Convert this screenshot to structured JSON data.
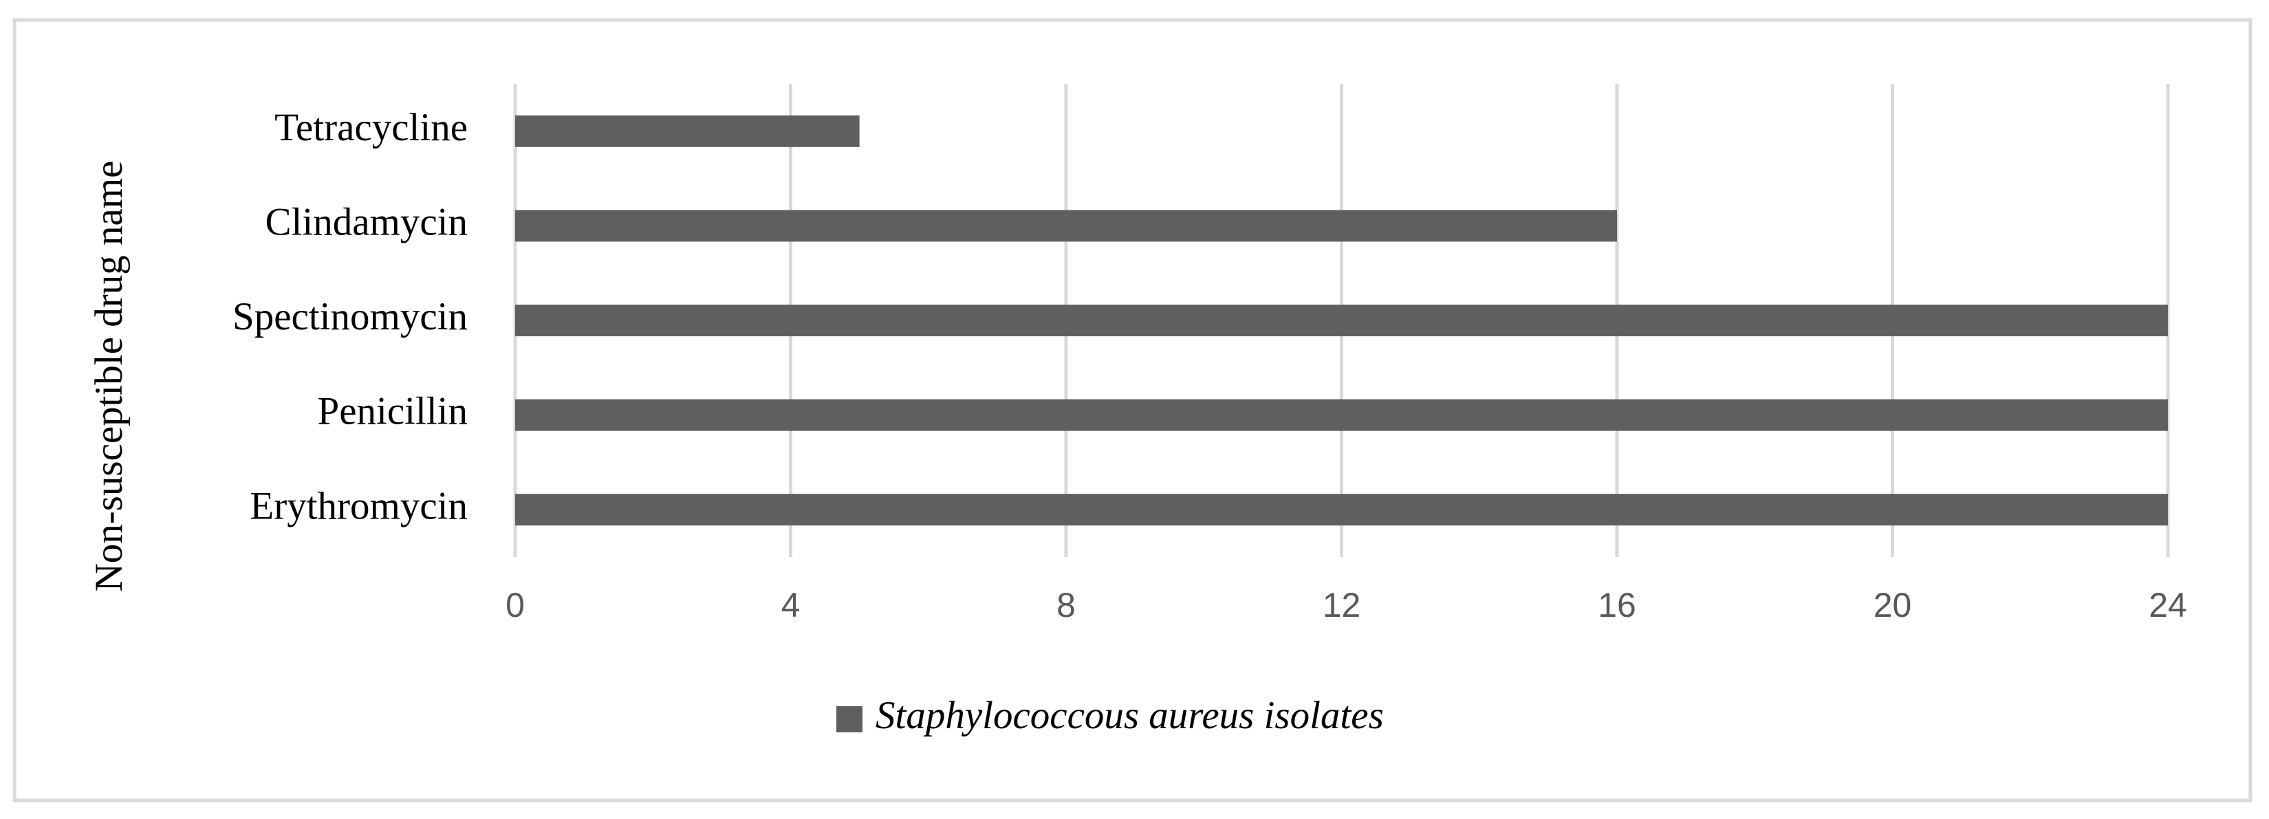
{
  "chart_data": {
    "type": "bar",
    "orientation": "horizontal",
    "y_label": "Non-susceptible drug name",
    "categories": [
      "Erythromycin",
      "Penicillin",
      "Spectinomycin",
      "Clindamycin",
      "Tetracycline"
    ],
    "series": [
      {
        "name": "Staphylococcous aureus isolates",
        "color": "#5f5f5f",
        "values": [
          24,
          24,
          24,
          16,
          5
        ]
      }
    ],
    "xlim": [
      0,
      24
    ],
    "xticks": [
      0,
      4,
      8,
      12,
      16,
      20,
      24
    ],
    "grid": true,
    "legend": "bottom"
  }
}
